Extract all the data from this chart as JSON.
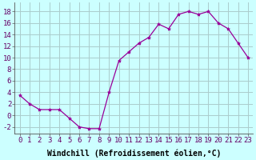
{
  "x": [
    0,
    1,
    2,
    3,
    4,
    5,
    6,
    7,
    8,
    9,
    10,
    11,
    12,
    13,
    14,
    15,
    16,
    17,
    18,
    19,
    20,
    21,
    22,
    23
  ],
  "y": [
    3.5,
    2.0,
    1.0,
    1.0,
    1.0,
    -0.5,
    -2.0,
    -2.3,
    -2.3,
    4.0,
    9.5,
    11.0,
    12.5,
    13.5,
    15.8,
    15.0,
    17.5,
    18.0,
    17.5,
    18.0,
    16.0,
    15.0,
    12.5,
    10.0
  ],
  "line_color": "#990099",
  "marker": "*",
  "marker_size": 3,
  "background_color": "#ccffff",
  "grid_color": "#aacccc",
  "xlabel": "Windchill (Refroidissement éolien,°C)",
  "xlabel_fontsize": 7,
  "yticks": [
    -2,
    0,
    2,
    4,
    6,
    8,
    10,
    12,
    14,
    16,
    18
  ],
  "xtick_labels": [
    "0",
    "1",
    "2",
    "3",
    "4",
    "5",
    "6",
    "7",
    "8",
    "9",
    "10",
    "11",
    "12",
    "13",
    "14",
    "15",
    "16",
    "17",
    "18",
    "19",
    "20",
    "21",
    "22",
    "23"
  ],
  "ylim": [
    -3.2,
    19.5
  ],
  "xlim": [
    -0.5,
    23.5
  ],
  "tick_fontsize": 6.5
}
